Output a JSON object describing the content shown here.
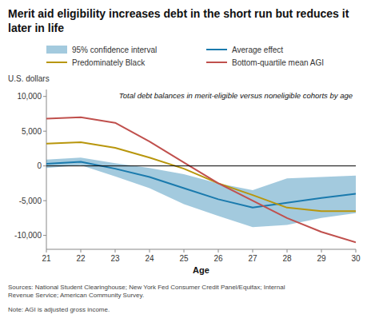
{
  "chart_data": {
    "type": "line",
    "title": "Merit aid eligibility increases debt in the short run but reduces it later in life",
    "annotation": "Total debt balances in merit-eligible versus noneligible cohorts by age",
    "x_label": "Age",
    "y_label": "U.S. dollars",
    "sources": "Sources: National Student Clearinghouse; New York Fed Consumer Credit Panel/Equifax; Internal\nRevenue Service; American Community Survey.",
    "note": "Note: AGI is adjusted gross income.",
    "x": [
      21,
      22,
      23,
      24,
      25,
      26,
      27,
      28,
      29,
      30
    ],
    "series": [
      {
        "name": "95% confidence interval",
        "type": "area",
        "color": "#1a7aad",
        "lower": [
          -300,
          100,
          -1500,
          -3200,
          -5500,
          -7200,
          -8800,
          -8500,
          -7500,
          -6800
        ],
        "upper": [
          900,
          1200,
          400,
          -300,
          -1200,
          -2500,
          -3500,
          -1800,
          -1600,
          -1400
        ]
      },
      {
        "name": "Average effect",
        "type": "line",
        "color": "#1a7aad",
        "values": [
          300,
          600,
          -400,
          -1600,
          -3200,
          -4800,
          -6000,
          -5300,
          -4600,
          -4000
        ]
      },
      {
        "name": "Predominately Black",
        "type": "line",
        "color": "#b8960c",
        "values": [
          3200,
          3400,
          2600,
          1200,
          -400,
          -2500,
          -4200,
          -6000,
          -6500,
          -6500
        ]
      },
      {
        "name": "Bottom-quartile mean AGI",
        "type": "line",
        "color": "#c0504d",
        "values": [
          6800,
          7000,
          6200,
          3500,
          500,
          -2500,
          -5000,
          -7500,
          -9500,
          -11000
        ]
      }
    ],
    "reference_line": {
      "value": 0,
      "color": "#000000"
    },
    "xlim": [
      21,
      30
    ],
    "xticks": [
      21,
      22,
      23,
      24,
      25,
      26,
      27,
      28,
      29,
      30
    ],
    "ylim": [
      -12000,
      11000
    ],
    "yticks": [
      {
        "value": -10000,
        "label": "-10,000"
      },
      {
        "value": -5000,
        "label": "-5,000"
      },
      0,
      {
        "value": 5000,
        "label": "5,000"
      },
      {
        "value": 10000,
        "label": "10,000"
      }
    ],
    "grid": false,
    "legend": "top"
  }
}
